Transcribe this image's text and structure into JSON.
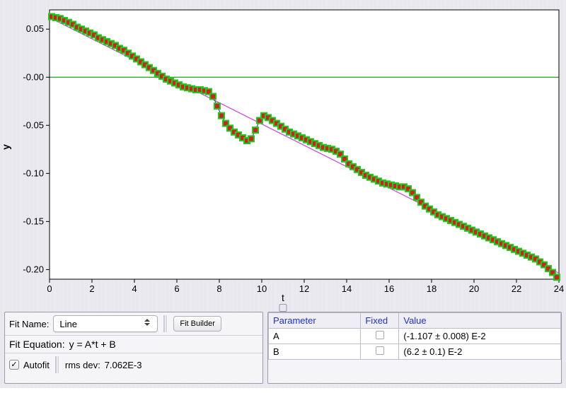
{
  "chart": {
    "type": "scatter-line",
    "xlabel": "t",
    "ylabel": "y",
    "plot_bg": "#ffffff",
    "panel_bg": "#e8e8ee",
    "frame_color": "#000000",
    "zero_line_color": "#1aa01a",
    "fit_line_color": "#d040e0",
    "connector_color": "#2020e0",
    "marker_outer_color": "#20c820",
    "marker_inner_color": "#d02020",
    "marker_outer_size": 10,
    "marker_inner_size": 6,
    "x": {
      "lim": [
        0,
        24
      ],
      "ticks": [
        0,
        2,
        4,
        6,
        8,
        10,
        12,
        14,
        16,
        18,
        20,
        22,
        24
      ]
    },
    "y": {
      "lim": [
        -0.21,
        0.07
      ],
      "ticks": [
        0.05,
        -0.0,
        -0.05,
        -0.1,
        -0.15,
        -0.2
      ],
      "tick_labels": [
        "0.05",
        "-0.00",
        "-0.05",
        "-0.10",
        "-0.15",
        "-0.20"
      ]
    },
    "fit": {
      "A": -0.01107,
      "B": 0.062
    },
    "data": [
      [
        0.1,
        0.063
      ],
      [
        0.3,
        0.062
      ],
      [
        0.5,
        0.061
      ],
      [
        0.7,
        0.059
      ],
      [
        0.9,
        0.057
      ],
      [
        1.1,
        0.055
      ],
      [
        1.3,
        0.052
      ],
      [
        1.5,
        0.05
      ],
      [
        1.7,
        0.048
      ],
      [
        1.9,
        0.046
      ],
      [
        2.1,
        0.044
      ],
      [
        2.3,
        0.041
      ],
      [
        2.5,
        0.039
      ],
      [
        2.7,
        0.037
      ],
      [
        2.9,
        0.035
      ],
      [
        3.1,
        0.033
      ],
      [
        3.3,
        0.03
      ],
      [
        3.5,
        0.028
      ],
      [
        3.7,
        0.025
      ],
      [
        3.9,
        0.022
      ],
      [
        4.1,
        0.019
      ],
      [
        4.3,
        0.016
      ],
      [
        4.5,
        0.013
      ],
      [
        4.7,
        0.01
      ],
      [
        4.9,
        0.007
      ],
      [
        5.1,
        0.004
      ],
      [
        5.3,
        0.001
      ],
      [
        5.5,
        -0.002
      ],
      [
        5.7,
        -0.004
      ],
      [
        5.9,
        -0.006
      ],
      [
        6.1,
        -0.008
      ],
      [
        6.3,
        -0.01
      ],
      [
        6.5,
        -0.011
      ],
      [
        6.7,
        -0.012
      ],
      [
        6.9,
        -0.013
      ],
      [
        7.1,
        -0.013
      ],
      [
        7.3,
        -0.014
      ],
      [
        7.5,
        -0.015
      ],
      [
        7.7,
        -0.02
      ],
      [
        7.9,
        -0.03
      ],
      [
        8.1,
        -0.04
      ],
      [
        8.3,
        -0.048
      ],
      [
        8.5,
        -0.053
      ],
      [
        8.7,
        -0.057
      ],
      [
        8.9,
        -0.06
      ],
      [
        9.1,
        -0.063
      ],
      [
        9.3,
        -0.066
      ],
      [
        9.5,
        -0.064
      ],
      [
        9.7,
        -0.055
      ],
      [
        9.9,
        -0.045
      ],
      [
        10.1,
        -0.04
      ],
      [
        10.3,
        -0.042
      ],
      [
        10.5,
        -0.045
      ],
      [
        10.7,
        -0.048
      ],
      [
        10.9,
        -0.051
      ],
      [
        11.1,
        -0.054
      ],
      [
        11.3,
        -0.057
      ],
      [
        11.5,
        -0.059
      ],
      [
        11.7,
        -0.061
      ],
      [
        11.9,
        -0.063
      ],
      [
        12.1,
        -0.065
      ],
      [
        12.3,
        -0.067
      ],
      [
        12.5,
        -0.069
      ],
      [
        12.7,
        -0.071
      ],
      [
        12.9,
        -0.073
      ],
      [
        13.1,
        -0.074
      ],
      [
        13.3,
        -0.075
      ],
      [
        13.5,
        -0.077
      ],
      [
        13.7,
        -0.08
      ],
      [
        13.9,
        -0.085
      ],
      [
        14.1,
        -0.09
      ],
      [
        14.3,
        -0.093
      ],
      [
        14.5,
        -0.096
      ],
      [
        14.7,
        -0.099
      ],
      [
        14.9,
        -0.102
      ],
      [
        15.1,
        -0.104
      ],
      [
        15.3,
        -0.106
      ],
      [
        15.5,
        -0.108
      ],
      [
        15.7,
        -0.11
      ],
      [
        15.9,
        -0.111
      ],
      [
        16.1,
        -0.112
      ],
      [
        16.3,
        -0.113
      ],
      [
        16.5,
        -0.114
      ],
      [
        16.7,
        -0.114
      ],
      [
        16.9,
        -0.116
      ],
      [
        17.1,
        -0.12
      ],
      [
        17.3,
        -0.125
      ],
      [
        17.5,
        -0.13
      ],
      [
        17.7,
        -0.134
      ],
      [
        17.9,
        -0.137
      ],
      [
        18.1,
        -0.14
      ],
      [
        18.3,
        -0.143
      ],
      [
        18.5,
        -0.145
      ],
      [
        18.7,
        -0.147
      ],
      [
        18.9,
        -0.149
      ],
      [
        19.1,
        -0.151
      ],
      [
        19.3,
        -0.153
      ],
      [
        19.5,
        -0.155
      ],
      [
        19.7,
        -0.157
      ],
      [
        19.9,
        -0.159
      ],
      [
        20.1,
        -0.161
      ],
      [
        20.3,
        -0.163
      ],
      [
        20.5,
        -0.165
      ],
      [
        20.7,
        -0.167
      ],
      [
        20.9,
        -0.169
      ],
      [
        21.1,
        -0.171
      ],
      [
        21.3,
        -0.173
      ],
      [
        21.5,
        -0.175
      ],
      [
        21.7,
        -0.177
      ],
      [
        21.9,
        -0.179
      ],
      [
        22.1,
        -0.181
      ],
      [
        22.3,
        -0.183
      ],
      [
        22.5,
        -0.185
      ],
      [
        22.7,
        -0.187
      ],
      [
        22.9,
        -0.189
      ],
      [
        23.1,
        -0.192
      ],
      [
        23.3,
        -0.195
      ],
      [
        23.5,
        -0.199
      ],
      [
        23.7,
        -0.203
      ],
      [
        23.9,
        -0.208
      ]
    ]
  },
  "left_panel": {
    "fit_name_label": "Fit Name:",
    "fit_name_value": "Line",
    "fit_builder_label": "Fit Builder",
    "fit_equation_label": "Fit Equation:",
    "fit_equation_value": "y = A*t + B",
    "autofit_label": "Autofit",
    "autofit_checked": true,
    "rms_label": "rms dev:",
    "rms_value": "7.062E-3"
  },
  "params_table": {
    "headers": {
      "parameter": "Parameter",
      "fixed": "Fixed",
      "value": "Value"
    },
    "rows": [
      {
        "name": "A",
        "fixed": false,
        "value": "(-1.107 ± 0.008) E-2"
      },
      {
        "name": "B",
        "fixed": false,
        "value": "(6.2 ± 0.1) E-2"
      }
    ]
  }
}
